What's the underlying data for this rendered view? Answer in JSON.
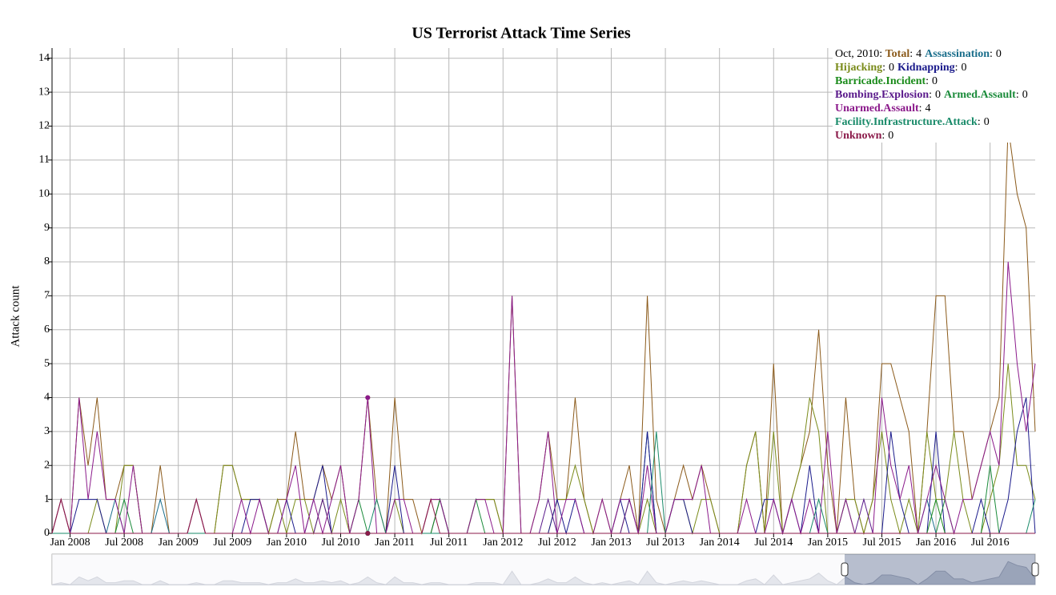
{
  "chart_data": {
    "type": "line",
    "title": "US Terrorist Attack Time Series",
    "y_label": "Attack count",
    "grid": true,
    "legend_date": "Oct, 2010",
    "highlight_x": "2010-10",
    "xlim": [
      "2007-11",
      "2016-12"
    ],
    "ylim": [
      0,
      14.3
    ],
    "yticks": [
      0,
      1,
      2,
      3,
      4,
      5,
      6,
      7,
      8,
      9,
      10,
      11,
      12,
      13,
      14
    ],
    "xticks": [
      {
        "value": "2008-01",
        "label": "Jan 2008"
      },
      {
        "value": "2008-07",
        "label": "Jul 2008"
      },
      {
        "value": "2009-01",
        "label": "Jan 2009"
      },
      {
        "value": "2009-07",
        "label": "Jul 2009"
      },
      {
        "value": "2010-01",
        "label": "Jan 2010"
      },
      {
        "value": "2010-07",
        "label": "Jul 2010"
      },
      {
        "value": "2011-01",
        "label": "Jan 2011"
      },
      {
        "value": "2011-07",
        "label": "Jul 2011"
      },
      {
        "value": "2012-01",
        "label": "Jan 2012"
      },
      {
        "value": "2012-07",
        "label": "Jul 2012"
      },
      {
        "value": "2013-01",
        "label": "Jan 2013"
      },
      {
        "value": "2013-07",
        "label": "Jul 2013"
      },
      {
        "value": "2014-01",
        "label": "Jan 2014"
      },
      {
        "value": "2014-07",
        "label": "Jul 2014"
      },
      {
        "value": "2015-01",
        "label": "Jan 2015"
      },
      {
        "value": "2015-07",
        "label": "Jul 2015"
      },
      {
        "value": "2016-01",
        "label": "Jan 2016"
      },
      {
        "value": "2016-07",
        "label": "Jul 2016"
      }
    ],
    "x": [
      "2007-11",
      "2007-12",
      "2008-01",
      "2008-02",
      "2008-03",
      "2008-04",
      "2008-05",
      "2008-06",
      "2008-07",
      "2008-08",
      "2008-09",
      "2008-10",
      "2008-11",
      "2008-12",
      "2009-01",
      "2009-02",
      "2009-03",
      "2009-04",
      "2009-05",
      "2009-06",
      "2009-07",
      "2009-08",
      "2009-09",
      "2009-10",
      "2009-11",
      "2009-12",
      "2010-01",
      "2010-02",
      "2010-03",
      "2010-04",
      "2010-05",
      "2010-06",
      "2010-07",
      "2010-08",
      "2010-09",
      "2010-10",
      "2010-11",
      "2010-12",
      "2011-01",
      "2011-02",
      "2011-03",
      "2011-04",
      "2011-05",
      "2011-06",
      "2011-07",
      "2011-08",
      "2011-09",
      "2011-10",
      "2011-11",
      "2011-12",
      "2012-01",
      "2012-02",
      "2012-03",
      "2012-04",
      "2012-05",
      "2012-06",
      "2012-07",
      "2012-08",
      "2012-09",
      "2012-10",
      "2012-11",
      "2012-12",
      "2013-01",
      "2013-02",
      "2013-03",
      "2013-04",
      "2013-05",
      "2013-06",
      "2013-07",
      "2013-08",
      "2013-09",
      "2013-10",
      "2013-11",
      "2013-12",
      "2014-01",
      "2014-02",
      "2014-03",
      "2014-04",
      "2014-05",
      "2014-06",
      "2014-07",
      "2014-08",
      "2014-09",
      "2014-10",
      "2014-11",
      "2014-12",
      "2015-01",
      "2015-02",
      "2015-03",
      "2015-04",
      "2015-05",
      "2015-06",
      "2015-07",
      "2015-08",
      "2015-09",
      "2015-10",
      "2015-11",
      "2015-12",
      "2016-01",
      "2016-02",
      "2016-03",
      "2016-04",
      "2016-05",
      "2016-06",
      "2016-07",
      "2016-08",
      "2016-09",
      "2016-10",
      "2016-11",
      "2016-12"
    ],
    "series": [
      {
        "name": "Total",
        "color": "#8b5a1a",
        "values": [
          0,
          1,
          0,
          4,
          2,
          4,
          1,
          1,
          2,
          2,
          0,
          0,
          2,
          0,
          0,
          0,
          1,
          0,
          0,
          2,
          2,
          1,
          1,
          1,
          0,
          1,
          1,
          3,
          1,
          1,
          2,
          1,
          2,
          0,
          1,
          4,
          1,
          0,
          4,
          1,
          1,
          0,
          1,
          1,
          0,
          0,
          0,
          1,
          1,
          1,
          0,
          7,
          0,
          0,
          1,
          3,
          1,
          1,
          4,
          1,
          0,
          1,
          0,
          1,
          2,
          0,
          7,
          1,
          0,
          1,
          2,
          1,
          2,
          1,
          0,
          0,
          0,
          2,
          3,
          0,
          5,
          0,
          1,
          2,
          3,
          6,
          2,
          0,
          4,
          1,
          0,
          1,
          5,
          5,
          4,
          3,
          0,
          3,
          7,
          7,
          3,
          3,
          1,
          2,
          3,
          4,
          12,
          10,
          9,
          3
        ]
      },
      {
        "name": "Assassination",
        "color": "#1a6e8b",
        "values": [
          0,
          0,
          0,
          0,
          0,
          0,
          0,
          1,
          0,
          0,
          0,
          0,
          1,
          0,
          0,
          0,
          0,
          0,
          0,
          0,
          0,
          0,
          0,
          0,
          0,
          0,
          0,
          0,
          0,
          0,
          0,
          0,
          0,
          0,
          0,
          0,
          0,
          0,
          0,
          0,
          0,
          0,
          0,
          0,
          0,
          0,
          0,
          0,
          0,
          0,
          0,
          0,
          0,
          0,
          0,
          0,
          0,
          0,
          0,
          0,
          0,
          0,
          0,
          0,
          0,
          0,
          3,
          0,
          0,
          0,
          0,
          0,
          0,
          0,
          0,
          0,
          0,
          0,
          0,
          0,
          0,
          0,
          0,
          0,
          0,
          0,
          0,
          0,
          0,
          0,
          0,
          0,
          0,
          0,
          0,
          0,
          0,
          1,
          0,
          0,
          0,
          0,
          0,
          0,
          0,
          0,
          0,
          0,
          0,
          0
        ]
      },
      {
        "name": "Hijacking",
        "color": "#7a8b1a",
        "values": [
          0,
          0,
          0,
          0,
          0,
          1,
          0,
          0,
          2,
          2,
          0,
          0,
          0,
          0,
          0,
          0,
          0,
          0,
          0,
          2,
          2,
          1,
          1,
          1,
          0,
          1,
          0,
          1,
          1,
          0,
          1,
          0,
          1,
          0,
          0,
          0,
          0,
          0,
          1,
          0,
          0,
          0,
          0,
          0,
          0,
          0,
          0,
          1,
          1,
          1,
          0,
          0,
          0,
          0,
          0,
          0,
          1,
          1,
          2,
          1,
          0,
          0,
          0,
          0,
          1,
          0,
          1,
          0,
          0,
          1,
          1,
          0,
          1,
          1,
          0,
          0,
          0,
          2,
          3,
          0,
          3,
          0,
          1,
          2,
          4,
          3,
          0,
          0,
          1,
          1,
          0,
          1,
          3,
          1,
          0,
          1,
          0,
          3,
          1,
          1,
          3,
          1,
          0,
          0,
          1,
          2,
          5,
          2,
          2,
          1
        ]
      },
      {
        "name": "Kidnapping",
        "color": "#1a1a8b",
        "values": [
          0,
          0,
          0,
          1,
          1,
          1,
          0,
          0,
          0,
          0,
          0,
          0,
          0,
          0,
          0,
          0,
          0,
          0,
          0,
          0,
          0,
          0,
          1,
          1,
          0,
          0,
          1,
          0,
          0,
          1,
          2,
          0,
          0,
          0,
          0,
          0,
          0,
          0,
          2,
          0,
          0,
          0,
          0,
          1,
          0,
          0,
          0,
          0,
          0,
          0,
          0,
          0,
          0,
          0,
          0,
          0,
          1,
          0,
          1,
          0,
          0,
          0,
          0,
          1,
          0,
          0,
          3,
          0,
          0,
          1,
          1,
          0,
          0,
          0,
          0,
          0,
          0,
          0,
          0,
          1,
          1,
          0,
          1,
          0,
          2,
          0,
          0,
          0,
          0,
          0,
          0,
          0,
          0,
          3,
          1,
          0,
          0,
          0,
          3,
          0,
          0,
          0,
          0,
          1,
          0,
          0,
          1,
          3,
          4,
          0
        ]
      },
      {
        "name": "Barricade.Incident",
        "color": "#1a8b1a",
        "values": [
          0,
          0,
          0,
          0,
          0,
          0,
          0,
          0,
          0,
          0,
          0,
          0,
          0,
          0,
          0,
          0,
          0,
          0,
          0,
          0,
          0,
          0,
          0,
          0,
          0,
          0,
          0,
          0,
          0,
          0,
          0,
          0,
          0,
          0,
          0,
          0,
          0,
          0,
          0,
          0,
          0,
          0,
          0,
          1,
          0,
          0,
          0,
          0,
          0,
          0,
          0,
          0,
          0,
          0,
          0,
          0,
          0,
          0,
          0,
          0,
          0,
          0,
          0,
          0,
          0,
          0,
          0,
          0,
          0,
          0,
          0,
          0,
          0,
          0,
          0,
          0,
          0,
          0,
          0,
          0,
          0,
          0,
          0,
          0,
          0,
          0,
          0,
          0,
          0,
          0,
          0,
          0,
          0,
          0,
          0,
          0,
          0,
          0,
          1,
          0,
          0,
          0,
          0,
          0,
          0,
          0,
          0,
          0,
          0,
          0
        ]
      },
      {
        "name": "Bombing.Explosion",
        "color": "#5a1a8b",
        "values": [
          0,
          0,
          0,
          0,
          0,
          0,
          0,
          0,
          0,
          0,
          0,
          0,
          0,
          0,
          0,
          0,
          0,
          0,
          0,
          0,
          0,
          0,
          0,
          0,
          0,
          0,
          0,
          0,
          0,
          0,
          1,
          0,
          0,
          0,
          0,
          0,
          0,
          0,
          0,
          0,
          0,
          0,
          0,
          0,
          0,
          0,
          0,
          0,
          0,
          0,
          0,
          0,
          0,
          0,
          0,
          1,
          0,
          0,
          0,
          0,
          0,
          0,
          0,
          0,
          1,
          0,
          0,
          0,
          0,
          0,
          0,
          0,
          0,
          0,
          0,
          0,
          0,
          0,
          0,
          0,
          0,
          0,
          0,
          0,
          0,
          0,
          0,
          0,
          0,
          0,
          1,
          0,
          0,
          0,
          0,
          0,
          0,
          0,
          0,
          0,
          0,
          0,
          0,
          0,
          0,
          0,
          0,
          0,
          0,
          0
        ]
      },
      {
        "name": "Armed.Assault",
        "color": "#1a8b3a",
        "values": [
          0,
          0,
          0,
          0,
          0,
          0,
          0,
          0,
          1,
          0,
          0,
          0,
          0,
          0,
          0,
          0,
          0,
          0,
          0,
          0,
          0,
          0,
          0,
          0,
          0,
          0,
          0,
          0,
          0,
          0,
          0,
          0,
          0,
          0,
          1,
          0,
          0,
          0,
          0,
          0,
          0,
          0,
          0,
          0,
          0,
          0,
          0,
          1,
          0,
          0,
          0,
          0,
          0,
          0,
          0,
          0,
          0,
          0,
          0,
          0,
          0,
          0,
          0,
          0,
          0,
          0,
          0,
          0,
          0,
          0,
          0,
          0,
          0,
          0,
          0,
          0,
          0,
          0,
          0,
          0,
          0,
          0,
          0,
          0,
          0,
          0,
          0,
          0,
          1,
          0,
          0,
          0,
          0,
          0,
          0,
          0,
          0,
          0,
          0,
          1,
          0,
          0,
          0,
          0,
          2,
          0,
          0,
          0,
          0,
          0
        ]
      },
      {
        "name": "Unarmed.Assault",
        "color": "#8b1a8b",
        "values": [
          0,
          1,
          0,
          4,
          1,
          3,
          1,
          1,
          0,
          2,
          0,
          0,
          0,
          0,
          0,
          0,
          1,
          0,
          0,
          0,
          0,
          1,
          0,
          1,
          0,
          0,
          1,
          2,
          0,
          1,
          0,
          1,
          2,
          0,
          1,
          4,
          0,
          0,
          1,
          1,
          0,
          0,
          1,
          1,
          0,
          0,
          0,
          1,
          1,
          0,
          0,
          7,
          0,
          0,
          1,
          3,
          0,
          1,
          1,
          0,
          0,
          1,
          0,
          1,
          1,
          0,
          2,
          0,
          0,
          1,
          1,
          1,
          2,
          0,
          0,
          0,
          0,
          1,
          0,
          0,
          1,
          0,
          1,
          0,
          1,
          0,
          3,
          0,
          1,
          0,
          0,
          0,
          4,
          2,
          1,
          2,
          0,
          1,
          2,
          1,
          0,
          1,
          1,
          2,
          3,
          2,
          8,
          5,
          3,
          5
        ]
      },
      {
        "name": "Facility.Infrastructure.Attack",
        "color": "#1a8b6a",
        "values": [
          0,
          0,
          0,
          0,
          0,
          0,
          0,
          0,
          0,
          0,
          0,
          0,
          0,
          0,
          0,
          0,
          0,
          0,
          0,
          0,
          0,
          0,
          0,
          0,
          0,
          0,
          0,
          0,
          0,
          0,
          0,
          0,
          0,
          0,
          0,
          0,
          1,
          0,
          0,
          0,
          0,
          0,
          0,
          0,
          0,
          0,
          0,
          0,
          0,
          0,
          0,
          0,
          0,
          0,
          0,
          0,
          0,
          0,
          0,
          0,
          0,
          0,
          0,
          0,
          0,
          0,
          0,
          3,
          0,
          0,
          0,
          0,
          0,
          0,
          0,
          0,
          0,
          0,
          0,
          0,
          0,
          0,
          0,
          0,
          0,
          1,
          0,
          0,
          0,
          0,
          0,
          0,
          0,
          0,
          0,
          0,
          0,
          0,
          0,
          0,
          0,
          0,
          0,
          0,
          0,
          0,
          0,
          0,
          0,
          1
        ]
      },
      {
        "name": "Unknown",
        "color": "#8b1a4a",
        "values": [
          0,
          1,
          0,
          0,
          0,
          0,
          0,
          0,
          0,
          0,
          0,
          0,
          0,
          0,
          0,
          0,
          1,
          0,
          0,
          0,
          0,
          0,
          0,
          0,
          0,
          0,
          0,
          0,
          0,
          0,
          0,
          0,
          0,
          0,
          0,
          0,
          0,
          0,
          0,
          0,
          0,
          0,
          1,
          0,
          0,
          0,
          0,
          0,
          0,
          0,
          0,
          0,
          0,
          0,
          0,
          0,
          0,
          0,
          0,
          0,
          0,
          0,
          0,
          0,
          0,
          0,
          0,
          0,
          0,
          0,
          0,
          0,
          0,
          0,
          0,
          0,
          0,
          0,
          0,
          0,
          0,
          0,
          0,
          0,
          0,
          0,
          0,
          0,
          0,
          0,
          0,
          0,
          0,
          0,
          0,
          0,
          0,
          0,
          0,
          0,
          0,
          0,
          0,
          0,
          0,
          0,
          0,
          0,
          0,
          0
        ]
      }
    ]
  }
}
